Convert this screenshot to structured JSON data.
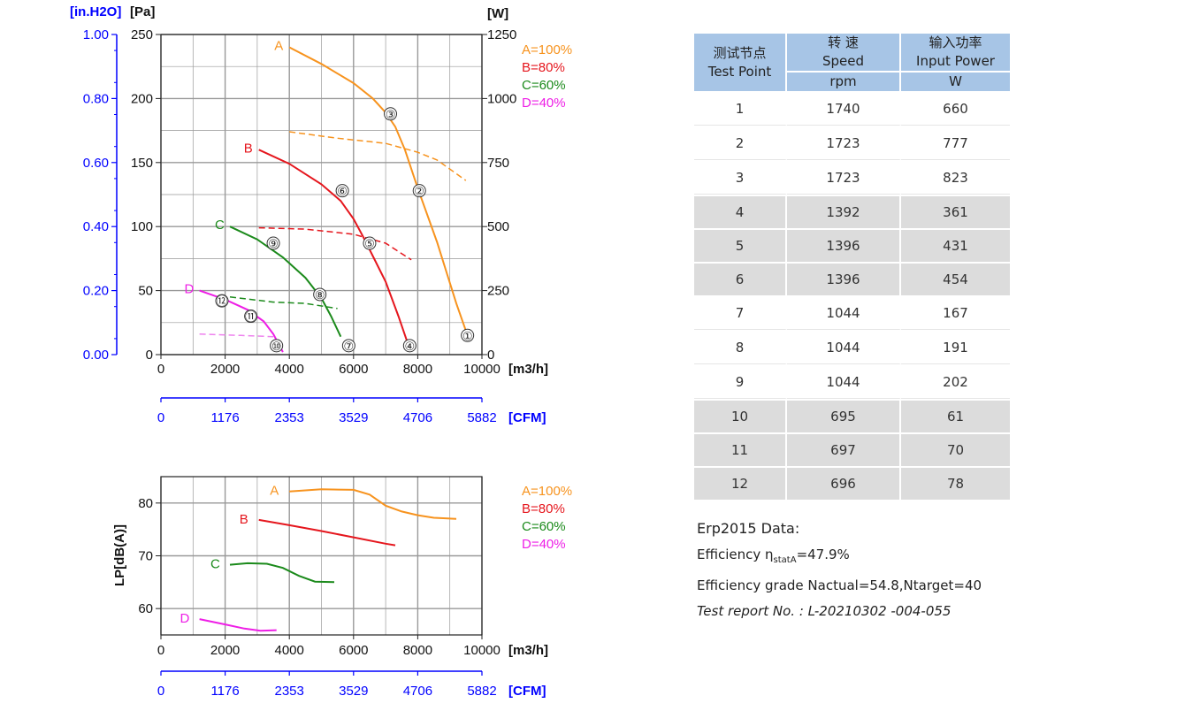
{
  "chart_data": [
    {
      "type": "line",
      "title": "",
      "xlabel": "[m3/h]",
      "x_range": [
        0,
        10000
      ],
      "x_ticks": [
        0,
        2000,
        4000,
        6000,
        8000,
        10000
      ],
      "x2_label": "[CFM]",
      "x2_ticks": [
        "0",
        "1176",
        "2353",
        "3529",
        "4706",
        "5882"
      ],
      "ylabel_left_inh2o": "[in.H2O]",
      "y_inh2o_ticks": [
        "0.00",
        "0.20",
        "0.40",
        "0.60",
        "0.80",
        "1.00"
      ],
      "ylabel_left_pa": "[Pa]",
      "y_pa_range": [
        0,
        250
      ],
      "y_pa_ticks": [
        0,
        50,
        100,
        150,
        200,
        250
      ],
      "ylabel_right": "[W]",
      "y_w_range": [
        0,
        1250
      ],
      "y_w_ticks": [
        0,
        250,
        500,
        750,
        1000,
        1250
      ],
      "grid": true,
      "legend_position": "top-right",
      "series": [
        {
          "name": "A=100%",
          "label": "A",
          "color": "#f7931e",
          "kind": "pressure",
          "x": [
            4000,
            5000,
            6000,
            6600,
            7000,
            7300,
            7600,
            8000,
            8600,
            9200,
            9550
          ],
          "y": [
            240,
            227,
            212,
            200,
            189,
            178,
            160,
            130,
            88,
            40,
            15
          ]
        },
        {
          "name": "B=80%",
          "label": "B",
          "color": "#e5161d",
          "kind": "pressure",
          "x": [
            3050,
            4000,
            5000,
            5600,
            6000,
            6300,
            6600,
            7000,
            7400,
            7700
          ],
          "y": [
            160,
            149,
            133,
            120,
            106,
            92,
            77,
            57,
            30,
            8
          ]
        },
        {
          "name": "C=60%",
          "label": "C",
          "color": "#1b8a1b",
          "kind": "pressure",
          "x": [
            2150,
            3000,
            3800,
            4500,
            5000,
            5300,
            5600
          ],
          "y": [
            100,
            90,
            76,
            60,
            44,
            30,
            14
          ]
        },
        {
          "name": "D=40%",
          "label": "D",
          "color": "#ee1ee6",
          "kind": "pressure",
          "x": [
            1200,
            2000,
            2700,
            3200,
            3500,
            3800
          ],
          "y": [
            50,
            43,
            35,
            26,
            16,
            2
          ]
        },
        {
          "name": "A=100%",
          "color": "#f7931e",
          "kind": "power",
          "x": [
            4000,
            5500,
            7000,
            8000,
            8600,
            9500
          ],
          "y": [
            870,
            845,
            825,
            790,
            760,
            680
          ]
        },
        {
          "name": "B=80%",
          "color": "#e5161d",
          "kind": "power",
          "x": [
            3050,
            4500,
            6000,
            7000,
            7800
          ],
          "y": [
            495,
            490,
            470,
            435,
            370
          ]
        },
        {
          "name": "C=60%",
          "color": "#1b8a1b",
          "kind": "power",
          "x": [
            2150,
            3500,
            4500,
            5500
          ],
          "y": [
            225,
            205,
            200,
            180
          ]
        },
        {
          "name": "D=40%",
          "color": "#ee82ee",
          "kind": "power",
          "x": [
            1200,
            2500,
            3500
          ],
          "y": [
            80,
            75,
            70
          ]
        }
      ],
      "test_point_markers": [
        {
          "label": "①",
          "x": 9550,
          "y": 15
        },
        {
          "label": "②",
          "x": 8050,
          "y": 128
        },
        {
          "label": "③",
          "x": 7150,
          "y": 188
        },
        {
          "label": "④",
          "x": 7750,
          "y": 7
        },
        {
          "label": "⑤",
          "x": 6500,
          "y": 87
        },
        {
          "label": "⑥",
          "x": 5650,
          "y": 128
        },
        {
          "label": "⑦",
          "x": 5850,
          "y": 7
        },
        {
          "label": "⑧",
          "x": 4950,
          "y": 47
        },
        {
          "label": "⑨",
          "x": 3500,
          "y": 87
        },
        {
          "label": "⑩",
          "x": 3600,
          "y": 7
        },
        {
          "label": "⑪",
          "x": 2800,
          "y": 30
        },
        {
          "label": "⑫",
          "x": 1900,
          "y": 42
        }
      ]
    },
    {
      "type": "line",
      "title": "",
      "xlabel": "[m3/h]",
      "x_range": [
        0,
        10000
      ],
      "x_ticks": [
        0,
        2000,
        4000,
        6000,
        8000,
        10000
      ],
      "x2_label": "[CFM]",
      "x2_ticks": [
        "0",
        "1176",
        "2353",
        "3529",
        "4706",
        "5882"
      ],
      "ylabel": "LP[dB(A)]",
      "y_range": [
        55,
        85
      ],
      "y_ticks": [
        60,
        70,
        80
      ],
      "grid": true,
      "legend_position": "top-right",
      "series": [
        {
          "name": "A=100%",
          "label": "A",
          "color": "#f7931e",
          "x": [
            4000,
            5000,
            6000,
            6500,
            7000,
            7500,
            8000,
            8500,
            9200
          ],
          "y": [
            82.2,
            82.6,
            82.5,
            81.6,
            79.5,
            78.4,
            77.7,
            77.2,
            77.0
          ]
        },
        {
          "name": "B=80%",
          "label": "B",
          "color": "#e5161d",
          "x": [
            3050,
            4000,
            5000,
            6000,
            7000,
            7300
          ],
          "y": [
            76.8,
            75.8,
            74.7,
            73.5,
            72.3,
            72.0
          ]
        },
        {
          "name": "C=60%",
          "label": "C",
          "color": "#1b8a1b",
          "x": [
            2150,
            2700,
            3300,
            3800,
            4300,
            4800,
            5400
          ],
          "y": [
            68.3,
            68.6,
            68.5,
            67.7,
            66.2,
            65.1,
            65.0
          ]
        },
        {
          "name": "D=40%",
          "label": "D",
          "color": "#ee1ee6",
          "x": [
            1200,
            2000,
            2600,
            3100,
            3600
          ],
          "y": [
            58.0,
            57.0,
            56.2,
            55.8,
            55.9
          ]
        }
      ]
    }
  ],
  "table": {
    "header_cn": [
      "测试节点",
      "转 速",
      "输入功率"
    ],
    "header_en": [
      "Test Point",
      "Speed",
      "Input Power"
    ],
    "units": [
      "rpm",
      "W"
    ],
    "rows": [
      [
        "1",
        "1740",
        "660"
      ],
      [
        "2",
        "1723",
        "777"
      ],
      [
        "3",
        "1723",
        "823"
      ],
      [
        "4",
        "1392",
        "361"
      ],
      [
        "5",
        "1396",
        "431"
      ],
      [
        "6",
        "1396",
        "454"
      ],
      [
        "7",
        "1044",
        "167"
      ],
      [
        "8",
        "1044",
        "191"
      ],
      [
        "9",
        "1044",
        "202"
      ],
      [
        "10",
        "695",
        "61"
      ],
      [
        "11",
        "697",
        "70"
      ],
      [
        "12",
        "696",
        "78"
      ]
    ]
  },
  "erp": {
    "title": "Erp2015  Data:",
    "efficiency_prefix": "Efficiency η",
    "efficiency_sub": "statA",
    "efficiency_value": "=47.9%",
    "grade_text": "Efficiency grade  Nactual=54.8,Ntarget=40",
    "report_text": "Test report No. : L-20210302 -004-055"
  },
  "colors": {
    "axis_blue": "#0000ff",
    "table_header": "#a7c5e6",
    "table_alt_row": "#dcdcdc",
    "grid": "#999999"
  }
}
